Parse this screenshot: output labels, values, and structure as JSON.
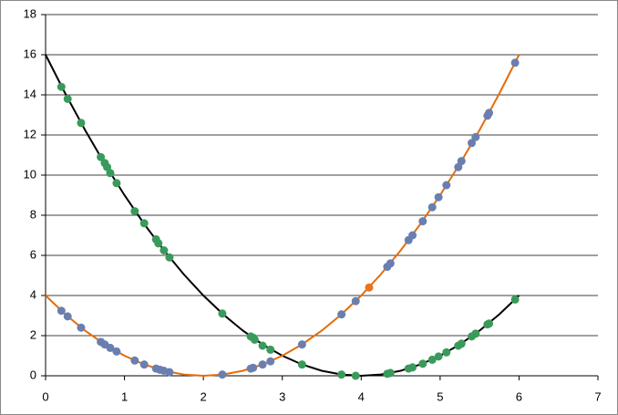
{
  "chart_data": {
    "type": "scatter",
    "xlim": [
      0,
      7
    ],
    "xticks": [
      0,
      1,
      2,
      3,
      4,
      5,
      6,
      7
    ],
    "ylim": [
      0,
      18
    ],
    "yticks": [
      0,
      2,
      4,
      6,
      8,
      10,
      12,
      14,
      16,
      18
    ],
    "grid": true,
    "series": [
      {
        "mode": "line",
        "color": "#000000",
        "x": [
          0,
          0.25,
          0.5,
          0.75,
          1,
          1.25,
          1.5,
          1.75,
          2,
          2.25,
          2.5,
          2.75,
          3,
          3.25,
          3.5,
          3.75,
          4,
          4.25,
          4.5,
          4.75,
          5,
          5.25,
          5.5,
          5.75,
          6
        ],
        "values": [
          16,
          14.0625,
          12.25,
          10.5625,
          9,
          7.5625,
          6.25,
          5.0625,
          4,
          3.0625,
          2.25,
          1.5625,
          1,
          0.5625,
          0.25,
          0.0625,
          0,
          0.0625,
          0.25,
          0.5625,
          1,
          1.5625,
          2.25,
          3.0625,
          4
        ]
      },
      {
        "mode": "line",
        "color": "#e46c0a",
        "x": [
          0,
          0.25,
          0.5,
          0.75,
          1,
          1.25,
          1.5,
          1.75,
          2,
          2.25,
          2.5,
          2.75,
          3,
          3.25,
          3.5,
          3.75,
          4,
          4.25,
          4.5,
          4.75,
          5,
          5.25,
          5.5,
          5.75,
          6
        ],
        "values": [
          4,
          3.0625,
          2.25,
          1.5625,
          1,
          0.5625,
          0.25,
          0.0625,
          0,
          0.0625,
          0.25,
          0.5625,
          1,
          1.5625,
          2.25,
          3.0625,
          4,
          5.0625,
          6.25,
          7.5625,
          9,
          10.5625,
          12.25,
          14.0625,
          16
        ]
      },
      {
        "mode": "marker",
        "color": "#3a9a5b",
        "x": [
          0.2,
          0.28,
          0.45,
          0.7,
          0.75,
          0.78,
          0.82,
          0.9,
          1.13,
          1.25,
          1.4,
          1.43,
          1.5,
          1.57,
          2.24,
          2.6,
          2.63,
          2.65,
          2.75,
          2.85,
          3.25,
          3.75,
          3.93,
          4.33,
          4.37,
          4.6,
          4.65,
          4.78,
          4.9,
          4.98,
          5.08,
          5.23,
          5.27,
          5.4,
          5.45,
          5.6,
          5.62,
          5.95
        ],
        "values": [
          14.4,
          13.8,
          12.6,
          10.9,
          10.6,
          10.4,
          10.1,
          9.6,
          8.2,
          7.6,
          6.8,
          6.6,
          6.25,
          5.9,
          3.1,
          1.96,
          1.9,
          1.8,
          1.5,
          1.3,
          0.56,
          0.06,
          0,
          0.1,
          0.14,
          0.36,
          0.42,
          0.6,
          0.8,
          0.96,
          1.17,
          1.5,
          1.6,
          1.96,
          2.1,
          2.56,
          2.6,
          3.8
        ]
      },
      {
        "mode": "marker",
        "color": "#6a7fb0",
        "x": [
          0.2,
          0.28,
          0.45,
          0.7,
          0.75,
          0.82,
          0.9,
          1.13,
          1.25,
          1.4,
          1.45,
          1.5,
          1.57,
          2.24,
          2.6,
          2.63,
          2.75,
          2.85,
          3.25,
          3.75,
          3.93,
          4.33,
          4.37,
          4.6,
          4.65,
          4.78,
          4.9,
          4.98,
          5.08,
          5.23,
          5.27,
          5.4,
          5.45,
          5.6,
          5.62,
          5.95
        ],
        "values": [
          3.24,
          2.96,
          2.4,
          1.69,
          1.56,
          1.39,
          1.21,
          0.76,
          0.56,
          0.36,
          0.3,
          0.25,
          0.18,
          0.06,
          0.36,
          0.4,
          0.56,
          0.72,
          1.56,
          3.06,
          3.72,
          5.43,
          5.6,
          6.76,
          7.0,
          7.7,
          8.4,
          8.9,
          9.5,
          10.4,
          10.7,
          11.6,
          11.9,
          12.96,
          13.1,
          15.6
        ]
      },
      {
        "mode": "marker",
        "color": "#e8741e",
        "x": [
          4.1
        ],
        "values": [
          4.4
        ]
      }
    ]
  }
}
